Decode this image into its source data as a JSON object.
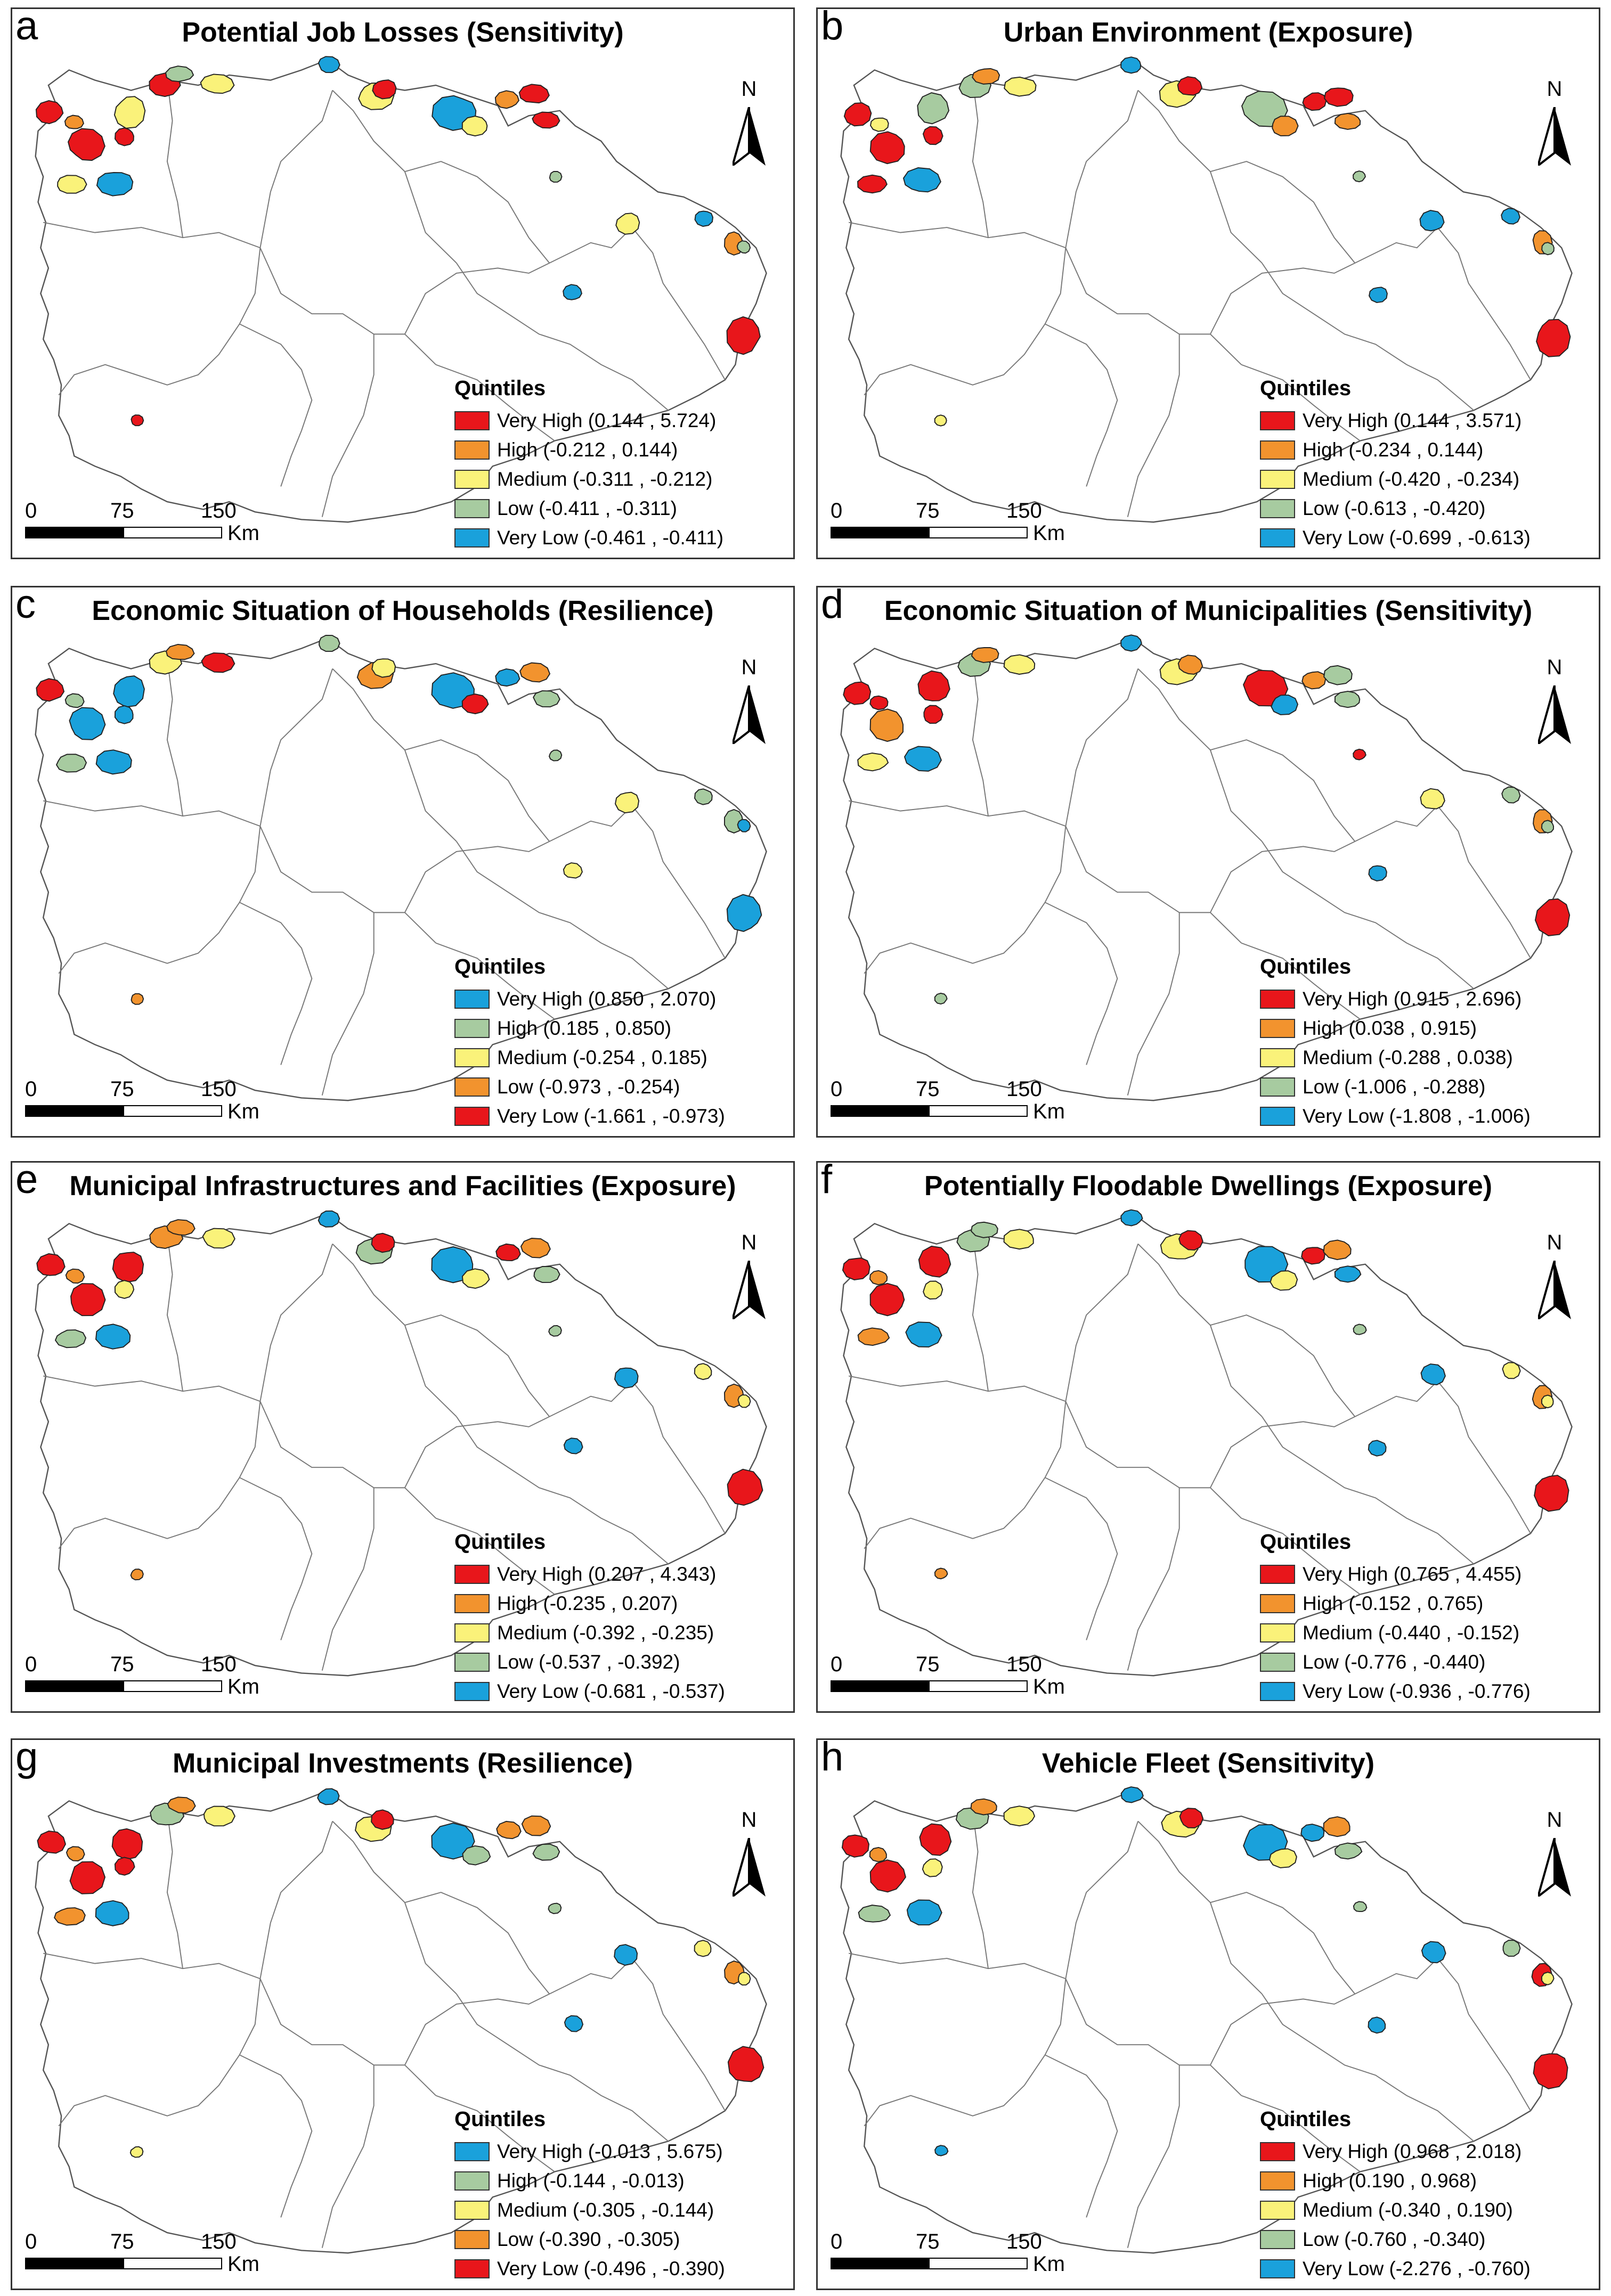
{
  "colors": {
    "red": "#E8161B",
    "orange": "#F2932E",
    "yellow": "#FAF27A",
    "green": "#A7CBA0",
    "blue": "#1AA1DB"
  },
  "scale": {
    "ticks": [
      "0",
      "75",
      "150"
    ],
    "unit": "Km"
  },
  "north_label": "N",
  "legend_title": "Quintiles",
  "panels": [
    {
      "letter": "a",
      "title": "Potential Job Losses (Sensitivity)",
      "legend": [
        {
          "label": "Very High (0.144 , 5.724)",
          "color": "red"
        },
        {
          "label": "High (-0.212 , 0.144)",
          "color": "orange"
        },
        {
          "label": "Medium (-0.311 , -0.212)",
          "color": "yellow"
        },
        {
          "label": "Low (-0.411 , -0.311)",
          "color": "green"
        },
        {
          "label": "Very Low (-0.461 , -0.411)",
          "color": "blue"
        }
      ]
    },
    {
      "letter": "b",
      "title": "Urban Environment (Exposure)",
      "legend": [
        {
          "label": "Very High (0.144 , 3.571)",
          "color": "red"
        },
        {
          "label": "High (-0.234 , 0.144)",
          "color": "orange"
        },
        {
          "label": "Medium (-0.420 , -0.234)",
          "color": "yellow"
        },
        {
          "label": "Low (-0.613 , -0.420)",
          "color": "green"
        },
        {
          "label": "Very Low (-0.699 , -0.613)",
          "color": "blue"
        }
      ]
    },
    {
      "letter": "c",
      "title": "Economic Situation of Households (Resilience)",
      "legend": [
        {
          "label": "Very High (0.850 , 2.070)",
          "color": "blue"
        },
        {
          "label": "High (0.185 , 0.850)",
          "color": "green"
        },
        {
          "label": "Medium (-0.254 , 0.185)",
          "color": "yellow"
        },
        {
          "label": "Low (-0.973 , -0.254)",
          "color": "orange"
        },
        {
          "label": "Very Low (-1.661 , -0.973)",
          "color": "red"
        }
      ]
    },
    {
      "letter": "d",
      "title": "Economic Situation of Municipalities (Sensitivity)",
      "legend": [
        {
          "label": "Very High (0.915 , 2.696)",
          "color": "red"
        },
        {
          "label": "High (0.038 , 0.915)",
          "color": "orange"
        },
        {
          "label": "Medium (-0.288 , 0.038)",
          "color": "yellow"
        },
        {
          "label": "Low (-1.006 , -0.288)",
          "color": "green"
        },
        {
          "label": "Very Low (-1.808 , -1.006)",
          "color": "blue"
        }
      ]
    },
    {
      "letter": "e",
      "title": "Municipal Infrastructures and Facilities (Exposure)",
      "legend": [
        {
          "label": "Very High (0.207 , 4.343)",
          "color": "red"
        },
        {
          "label": "High (-0.235 , 0.207)",
          "color": "orange"
        },
        {
          "label": "Medium (-0.392 , -0.235)",
          "color": "yellow"
        },
        {
          "label": "Low (-0.537 , -0.392)",
          "color": "green"
        },
        {
          "label": "Very Low (-0.681 , -0.537)",
          "color": "blue"
        }
      ]
    },
    {
      "letter": "f",
      "title": "Potentially Floodable Dwellings (Exposure)",
      "legend": [
        {
          "label": "Very High (0.765 , 4.455)",
          "color": "red"
        },
        {
          "label": "High (-0.152 , 0.765)",
          "color": "orange"
        },
        {
          "label": "Medium (-0.440 , -0.152)",
          "color": "yellow"
        },
        {
          "label": "Low (-0.776 , -0.440)",
          "color": "green"
        },
        {
          "label": "Very Low (-0.936 , -0.776)",
          "color": "blue"
        }
      ]
    },
    {
      "letter": "g",
      "title": "Municipal Investments (Resilience)",
      "legend": [
        {
          "label": "Very High (-0.013 , 5.675)",
          "color": "blue"
        },
        {
          "label": "High (-0.144 , -0.013)",
          "color": "green"
        },
        {
          "label": "Medium (-0.305 , -0.144)",
          "color": "yellow"
        },
        {
          "label": "Low (-0.390 , -0.305)",
          "color": "orange"
        },
        {
          "label": "Very Low (-0.496 , -0.390)",
          "color": "red"
        }
      ]
    },
    {
      "letter": "h",
      "title": "Vehicle Fleet (Sensitivity)",
      "legend": [
        {
          "label": "Very High (0.968 , 2.018)",
          "color": "red"
        },
        {
          "label": "High (0.190 , 0.968)",
          "color": "orange"
        },
        {
          "label": "Medium (-0.340 , 0.190)",
          "color": "yellow"
        },
        {
          "label": "Low (-0.760 , -0.340)",
          "color": "green"
        },
        {
          "label": "Very Low (-2.276 , -0.760)",
          "color": "blue"
        }
      ]
    }
  ],
  "muni_colors": [
    [
      "red",
      "orange",
      "red",
      "yellow",
      "yellow",
      "blue",
      "red",
      "red",
      "green",
      "yellow",
      "blue",
      "yellow",
      "red",
      "blue",
      "yellow",
      "orange",
      "red",
      "red",
      "green",
      "yellow",
      "blue",
      "orange",
      "red",
      "blue",
      "green",
      "red"
    ],
    [
      "red",
      "yellow",
      "red",
      "red",
      "green",
      "blue",
      "red",
      "green",
      "orange",
      "yellow",
      "blue",
      "yellow",
      "red",
      "green",
      "orange",
      "red",
      "red",
      "orange",
      "green",
      "blue",
      "blue",
      "orange",
      "red",
      "blue",
      "green",
      "yellow"
    ],
    [
      "red",
      "green",
      "blue",
      "green",
      "blue",
      "blue",
      "blue",
      "yellow",
      "orange",
      "red",
      "green",
      "orange",
      "yellow",
      "blue",
      "red",
      "blue",
      "orange",
      "green",
      "green",
      "yellow",
      "green",
      "green",
      "blue",
      "yellow",
      "blue",
      "orange"
    ],
    [
      "red",
      "red",
      "orange",
      "yellow",
      "red",
      "blue",
      "red",
      "green",
      "orange",
      "yellow",
      "blue",
      "yellow",
      "orange",
      "red",
      "blue",
      "orange",
      "green",
      "green",
      "red",
      "yellow",
      "green",
      "orange",
      "red",
      "blue",
      "green",
      "green"
    ],
    [
      "red",
      "orange",
      "red",
      "green",
      "red",
      "blue",
      "yellow",
      "orange",
      "orange",
      "yellow",
      "blue",
      "green",
      "red",
      "blue",
      "yellow",
      "red",
      "orange",
      "green",
      "green",
      "blue",
      "yellow",
      "orange",
      "red",
      "blue",
      "yellow",
      "orange"
    ],
    [
      "red",
      "orange",
      "red",
      "orange",
      "red",
      "blue",
      "yellow",
      "green",
      "green",
      "yellow",
      "blue",
      "yellow",
      "red",
      "blue",
      "yellow",
      "red",
      "orange",
      "blue",
      "green",
      "blue",
      "yellow",
      "orange",
      "red",
      "blue",
      "yellow",
      "orange"
    ],
    [
      "red",
      "orange",
      "red",
      "orange",
      "red",
      "blue",
      "red",
      "green",
      "orange",
      "yellow",
      "blue",
      "yellow",
      "red",
      "blue",
      "green",
      "orange",
      "orange",
      "green",
      "green",
      "blue",
      "yellow",
      "orange",
      "red",
      "blue",
      "yellow",
      "yellow"
    ],
    [
      "red",
      "orange",
      "red",
      "green",
      "red",
      "blue",
      "yellow",
      "green",
      "orange",
      "yellow",
      "blue",
      "yellow",
      "red",
      "blue",
      "yellow",
      "blue",
      "orange",
      "green",
      "green",
      "blue",
      "green",
      "red",
      "red",
      "blue",
      "yellow",
      "blue"
    ]
  ]
}
